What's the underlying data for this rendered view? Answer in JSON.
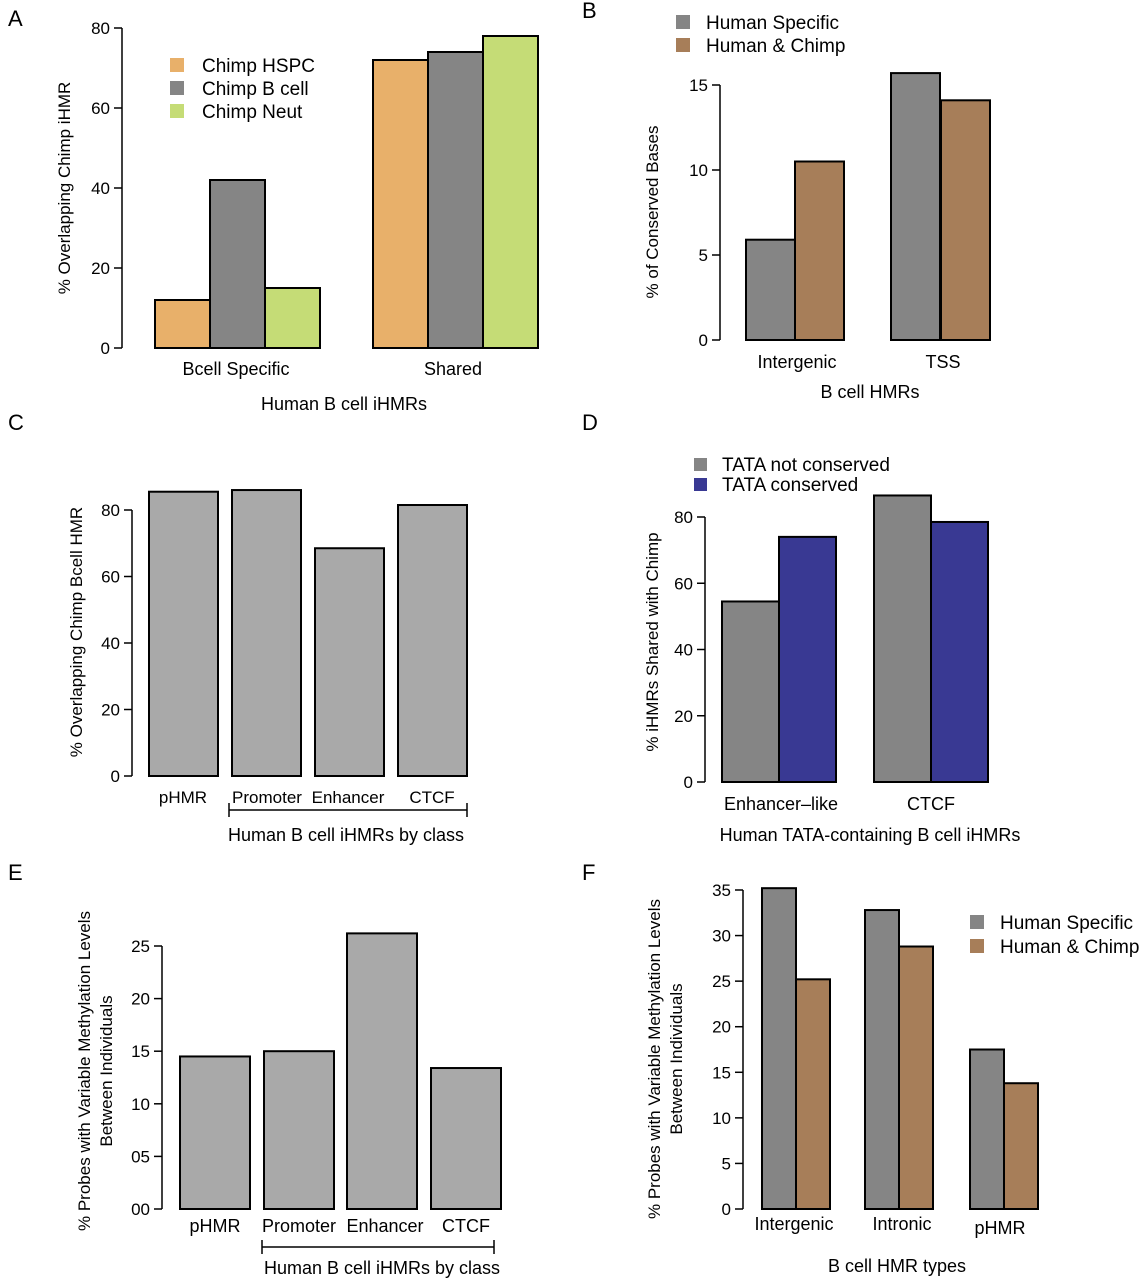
{
  "colors": {
    "hspc": "#e8b06a",
    "bcell": "#858585",
    "neut": "#c5dc76",
    "human_specific": "#858585",
    "human_chimp": "#a77e59",
    "light_gray": "#a9a9a9",
    "tata_not": "#858585",
    "tata_cons": "#393993"
  },
  "chart_data": [
    {
      "id": "A",
      "panel_label": "A",
      "type": "bar",
      "categories": [
        "Bcell Specific",
        "Shared"
      ],
      "series": [
        {
          "name": "Chimp HSPC",
          "color_key": "hspc",
          "values": [
            12,
            72
          ]
        },
        {
          "name": "Chimp B cell",
          "color_key": "bcell",
          "values": [
            42,
            74
          ]
        },
        {
          "name": "Chimp Neut",
          "color_key": "neut",
          "values": [
            15,
            78
          ]
        }
      ],
      "title": "",
      "xlabel": "Human B cell iHMRs",
      "ylabel": "% Overlapping Chimp iHMR",
      "ylim": [
        0,
        80
      ],
      "yticks": [
        "0",
        "20",
        "40",
        "60",
        "80"
      ],
      "legend": "top-left",
      "grid": false
    },
    {
      "id": "B",
      "panel_label": "B",
      "type": "bar",
      "categories": [
        "Intergenic",
        "TSS"
      ],
      "series": [
        {
          "name": "Human Specific",
          "color_key": "human_specific",
          "values": [
            5.9,
            15.7
          ]
        },
        {
          "name": "Human & Chimp",
          "color_key": "human_chimp",
          "values": [
            10.5,
            14.1
          ]
        }
      ],
      "title": "",
      "xlabel": "B cell HMRs",
      "ylabel": "% of Conserved Bases",
      "ylim": [
        0,
        16
      ],
      "yticks": [
        "0",
        "5",
        "10",
        "15"
      ],
      "legend": "top",
      "grid": false
    },
    {
      "id": "C",
      "panel_label": "C",
      "type": "bar",
      "categories": [
        "pHMR",
        "Promoter",
        "Enhancer",
        "CTCF"
      ],
      "series": [
        {
          "name": "",
          "color_key": "light_gray",
          "values": [
            85.5,
            86,
            68.5,
            81.5
          ]
        }
      ],
      "title": "",
      "xlabel": "Human B cell iHMRs by class",
      "ylabel": "% Overlapping Chimp Bcell HMR",
      "ylim": [
        0,
        86
      ],
      "yticks": [
        "0",
        "20",
        "40",
        "60",
        "80"
      ],
      "legend": "none",
      "grid": false
    },
    {
      "id": "D",
      "panel_label": "D",
      "type": "bar",
      "categories": [
        "Enhancer–like",
        "CTCF"
      ],
      "series": [
        {
          "name": "TATA not conserved",
          "color_key": "tata_not",
          "values": [
            54.5,
            86.5
          ]
        },
        {
          "name": "TATA conserved",
          "color_key": "tata_cons",
          "values": [
            74,
            78.5
          ]
        }
      ],
      "title": "",
      "xlabel": "Human TATA-containing B cell iHMRs",
      "ylabel": "% iHMRs Shared with Chimp",
      "ylim": [
        0,
        80
      ],
      "yticks": [
        "0",
        "20",
        "40",
        "60",
        "80"
      ],
      "legend": "top-left",
      "grid": false
    },
    {
      "id": "E",
      "panel_label": "E",
      "type": "bar",
      "categories": [
        "pHMR",
        "Promoter",
        "Enhancer",
        "CTCF"
      ],
      "series": [
        {
          "name": "",
          "color_key": "light_gray",
          "values": [
            14.5,
            15,
            26.2,
            13.4
          ]
        }
      ],
      "title": "",
      "xlabel": "Human B cell iHMRs by class",
      "ylabel": "% Probes with Variable Methylation Levels\nBetween Individuals",
      "ylim": [
        0,
        25
      ],
      "yticks": [
        "00",
        "05",
        "10",
        "15",
        "20",
        "25"
      ],
      "legend": "none",
      "grid": false
    },
    {
      "id": "F",
      "panel_label": "F",
      "type": "bar",
      "categories": [
        "Intergenic",
        "Intronic",
        "pHMR"
      ],
      "series": [
        {
          "name": "Human Specific",
          "color_key": "human_specific",
          "values": [
            35.2,
            32.8,
            17.5
          ]
        },
        {
          "name": "Human & Chimp",
          "color_key": "human_chimp",
          "values": [
            25.2,
            28.8,
            13.8
          ]
        }
      ],
      "title": "",
      "xlabel": "B cell HMR types",
      "ylabel": "% Probes with Variable Methylation Levels\nBetween Individuals",
      "ylim": [
        0,
        35
      ],
      "yticks": [
        "0",
        "5",
        "10",
        "15",
        "20",
        "25",
        "30",
        "35"
      ],
      "legend": "right",
      "grid": false
    }
  ]
}
